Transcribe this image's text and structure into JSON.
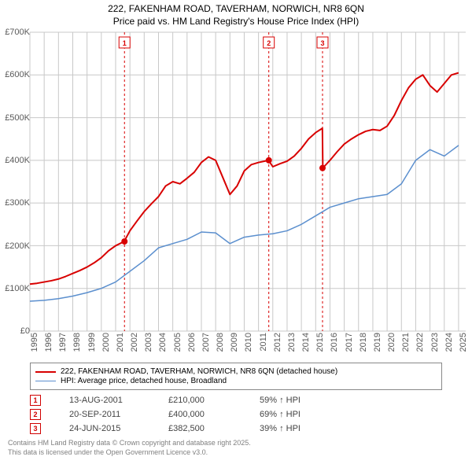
{
  "title_line1": "222, FAKENHAM ROAD, TAVERHAM, NORWICH, NR8 6QN",
  "title_line2": "Price paid vs. HM Land Registry's House Price Index (HPI)",
  "chart": {
    "type": "line",
    "background_color": "#ffffff",
    "grid_color": "#c8c8c8",
    "axis_label_color": "#5a5a5a",
    "x_years": [
      1995,
      1996,
      1997,
      1998,
      1999,
      2000,
      2001,
      2002,
      2003,
      2004,
      2005,
      2006,
      2007,
      2008,
      2009,
      2010,
      2011,
      2012,
      2013,
      2014,
      2015,
      2016,
      2017,
      2018,
      2019,
      2020,
      2021,
      2022,
      2023,
      2024,
      2025
    ],
    "xlim": [
      1995,
      2025.5
    ],
    "ylim": [
      0,
      700
    ],
    "ytick_step": 100,
    "y_tick_labels": [
      "£0",
      "£100K",
      "£200K",
      "£300K",
      "£400K",
      "£500K",
      "£600K",
      "£700K"
    ],
    "series": [
      {
        "name": "222, FAKENHAM ROAD, TAVERHAM, NORWICH, NR8 6QN (detached house)",
        "color": "#d80000",
        "line_width": 2,
        "x": [
          1995,
          1995.5,
          1996,
          1996.5,
          1997,
          1997.5,
          1998,
          1998.5,
          1999,
          1999.5,
          2000,
          2000.5,
          2001,
          2001.6,
          2002,
          2002.5,
          2003,
          2003.5,
          2004,
          2004.5,
          2005,
          2005.5,
          2006,
          2006.5,
          2007,
          2007.5,
          2008,
          2008.5,
          2009,
          2009.5,
          2010,
          2010.5,
          2011,
          2011.7,
          2012,
          2012.5,
          2013,
          2013.5,
          2014,
          2014.5,
          2015,
          2015.47,
          2015.5,
          2016,
          2016.5,
          2017,
          2017.5,
          2018,
          2018.5,
          2019,
          2019.5,
          2020,
          2020.5,
          2021,
          2021.5,
          2022,
          2022.5,
          2023,
          2023.5,
          2024,
          2024.5,
          2025
        ],
        "y": [
          110,
          112,
          115,
          118,
          122,
          128,
          135,
          142,
          150,
          160,
          172,
          188,
          200,
          210,
          235,
          258,
          280,
          298,
          315,
          340,
          350,
          345,
          358,
          372,
          395,
          408,
          400,
          360,
          320,
          340,
          375,
          390,
          395,
          400,
          385,
          392,
          398,
          410,
          428,
          450,
          465,
          475,
          382,
          400,
          420,
          438,
          450,
          460,
          468,
          472,
          470,
          480,
          505,
          540,
          570,
          590,
          600,
          575,
          560,
          580,
          600,
          605
        ]
      },
      {
        "name": "HPI: Average price, detached house, Broadland",
        "color": "#5b8fce",
        "line_width": 1.5,
        "x": [
          1995,
          1996,
          1997,
          1998,
          1999,
          2000,
          2001,
          2002,
          2003,
          2004,
          2005,
          2006,
          2007,
          2008,
          2009,
          2010,
          2011,
          2012,
          2013,
          2014,
          2015,
          2016,
          2017,
          2018,
          2019,
          2020,
          2021,
          2022,
          2023,
          2024,
          2025
        ],
        "y": [
          70,
          72,
          76,
          82,
          90,
          100,
          115,
          140,
          165,
          195,
          205,
          215,
          232,
          230,
          205,
          220,
          225,
          228,
          235,
          250,
          270,
          290,
          300,
          310,
          315,
          320,
          345,
          400,
          425,
          410,
          435
        ]
      }
    ],
    "markers": [
      {
        "n": "1",
        "x": 2001.62,
        "date": "13-AUG-2001",
        "price": "£210,000",
        "hpi": "59% ↑ HPI",
        "dot_y": 210
      },
      {
        "n": "2",
        "x": 2011.72,
        "date": "20-SEP-2011",
        "price": "£400,000",
        "hpi": "69% ↑ HPI",
        "dot_y": 400
      },
      {
        "n": "3",
        "x": 2015.48,
        "date": "24-JUN-2015",
        "price": "£382,500",
        "hpi": "39% ↑ HPI",
        "dot_y": 382
      }
    ],
    "marker_line_color": "#d80000",
    "marker_dot_fill": "#d80000"
  },
  "legend": {
    "items": [
      {
        "label": "222, FAKENHAM ROAD, TAVERHAM, NORWICH, NR8 6QN (detached house)",
        "color": "#d80000",
        "width": 2
      },
      {
        "label": "HPI: Average price, detached house, Broadland",
        "color": "#5b8fce",
        "width": 1.5
      }
    ]
  },
  "footnote_line1": "Contains HM Land Registry data © Crown copyright and database right 2025.",
  "footnote_line2": "This data is licensed under the Open Government Licence v3.0."
}
